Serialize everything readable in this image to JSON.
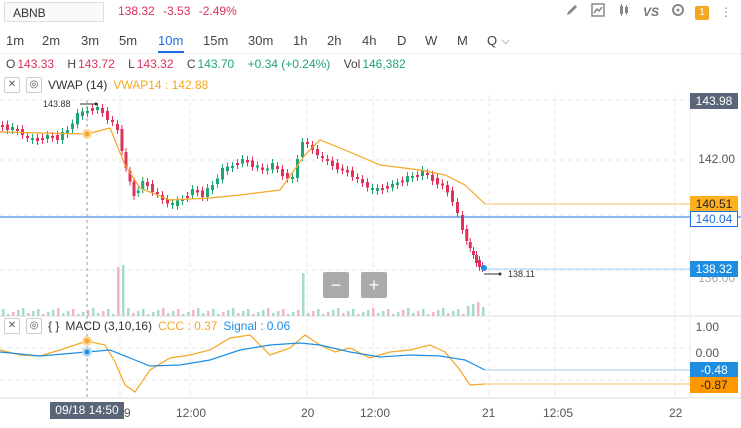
{
  "header": {
    "symbol": "ABNB",
    "price": "138.32",
    "change": "-3.53",
    "change_pct": "-2.49%",
    "tools": [
      "pencil-icon",
      "chart-icon",
      "candles-icon",
      "compare-vs",
      "settings-icon",
      "alerts-badge"
    ],
    "compare_label": "VS",
    "badge_count": "1"
  },
  "timeframes": [
    "1m",
    "2m",
    "3m",
    "5m",
    "10m",
    "15m",
    "30m",
    "1h",
    "2h",
    "4h",
    "D",
    "W",
    "M",
    "Q"
  ],
  "active_timeframe": "10m",
  "ohlc": {
    "o_label": "O",
    "o": "143.33",
    "h_label": "H",
    "h": "143.72",
    "l_label": "L",
    "l": "143.32",
    "c_label": "C",
    "c": "143.70",
    "chg": "+0.34 (+0.24%)",
    "vol_label": "Vol",
    "vol": "146,382"
  },
  "vwap": {
    "label": "VWAP (14)",
    "value_label": "VWAP14 : 142.88"
  },
  "macd": {
    "braces": "{ }",
    "label": "MACD (3,10,16)",
    "ccc": "CCC : 0.37",
    "signal": "Signal : 0.06"
  },
  "price_axis": {
    "top": "143.98",
    "mid": "142.00",
    "vwap_tag": "140.51",
    "line_tag": "140.04",
    "last_tag": "138.32",
    "covered": "136.00"
  },
  "macd_axis": {
    "top": "1.00",
    "zero": "0.00",
    "sig_tag": "-0.48",
    "ccc_tag": "-0.87"
  },
  "annotations": {
    "high": "143.88",
    "low": "138.11"
  },
  "time_axis": {
    "labels": [
      "12:00",
      "20",
      "12:00",
      "21",
      "12:05",
      "22"
    ],
    "partial": "9",
    "crosshair_date": "09/18 14:50"
  },
  "zoom": {
    "minus": "−",
    "plus": "+"
  },
  "colors": {
    "up": "#1ea672",
    "down": "#e0315a",
    "vwap": "#f5a623",
    "macd": "#1f8ee0",
    "accent": "#1f6fe0"
  }
}
